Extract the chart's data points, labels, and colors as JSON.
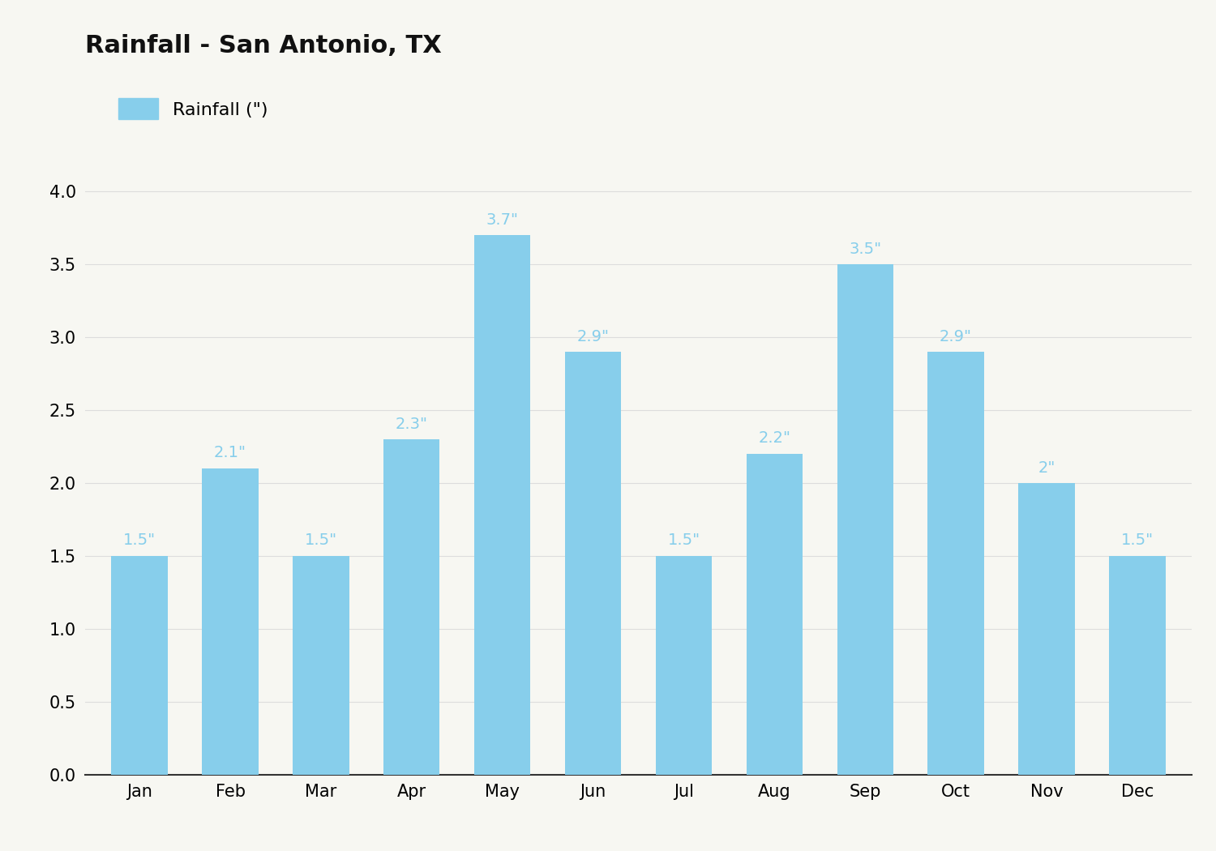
{
  "title": "Rainfall - San Antonio, TX",
  "legend_label": "Rainfall (\")",
  "months": [
    "Jan",
    "Feb",
    "Mar",
    "Apr",
    "May",
    "Jun",
    "Jul",
    "Aug",
    "Sep",
    "Oct",
    "Nov",
    "Dec"
  ],
  "values": [
    1.5,
    2.1,
    1.5,
    2.3,
    3.7,
    2.9,
    1.5,
    2.2,
    3.5,
    2.9,
    2.0,
    1.5
  ],
  "labels": [
    "1.5\"",
    "2.1\"",
    "1.5\"",
    "2.3\"",
    "3.7\"",
    "2.9\"",
    "1.5\"",
    "2.2\"",
    "3.5\"",
    "2.9\"",
    "2\"",
    "1.5\""
  ],
  "bar_color": "#87CEEB",
  "label_color": "#87CEEB",
  "background_color": "#F7F7F2",
  "title_fontsize": 22,
  "legend_fontsize": 16,
  "label_fontsize": 14,
  "tick_fontsize": 15,
  "ylim": [
    0,
    4.2
  ],
  "yticks": [
    0.0,
    0.5,
    1.0,
    1.5,
    2.0,
    2.5,
    3.0,
    3.5,
    4.0
  ],
  "grid_color": "#DDDDDD",
  "bar_width": 0.62
}
